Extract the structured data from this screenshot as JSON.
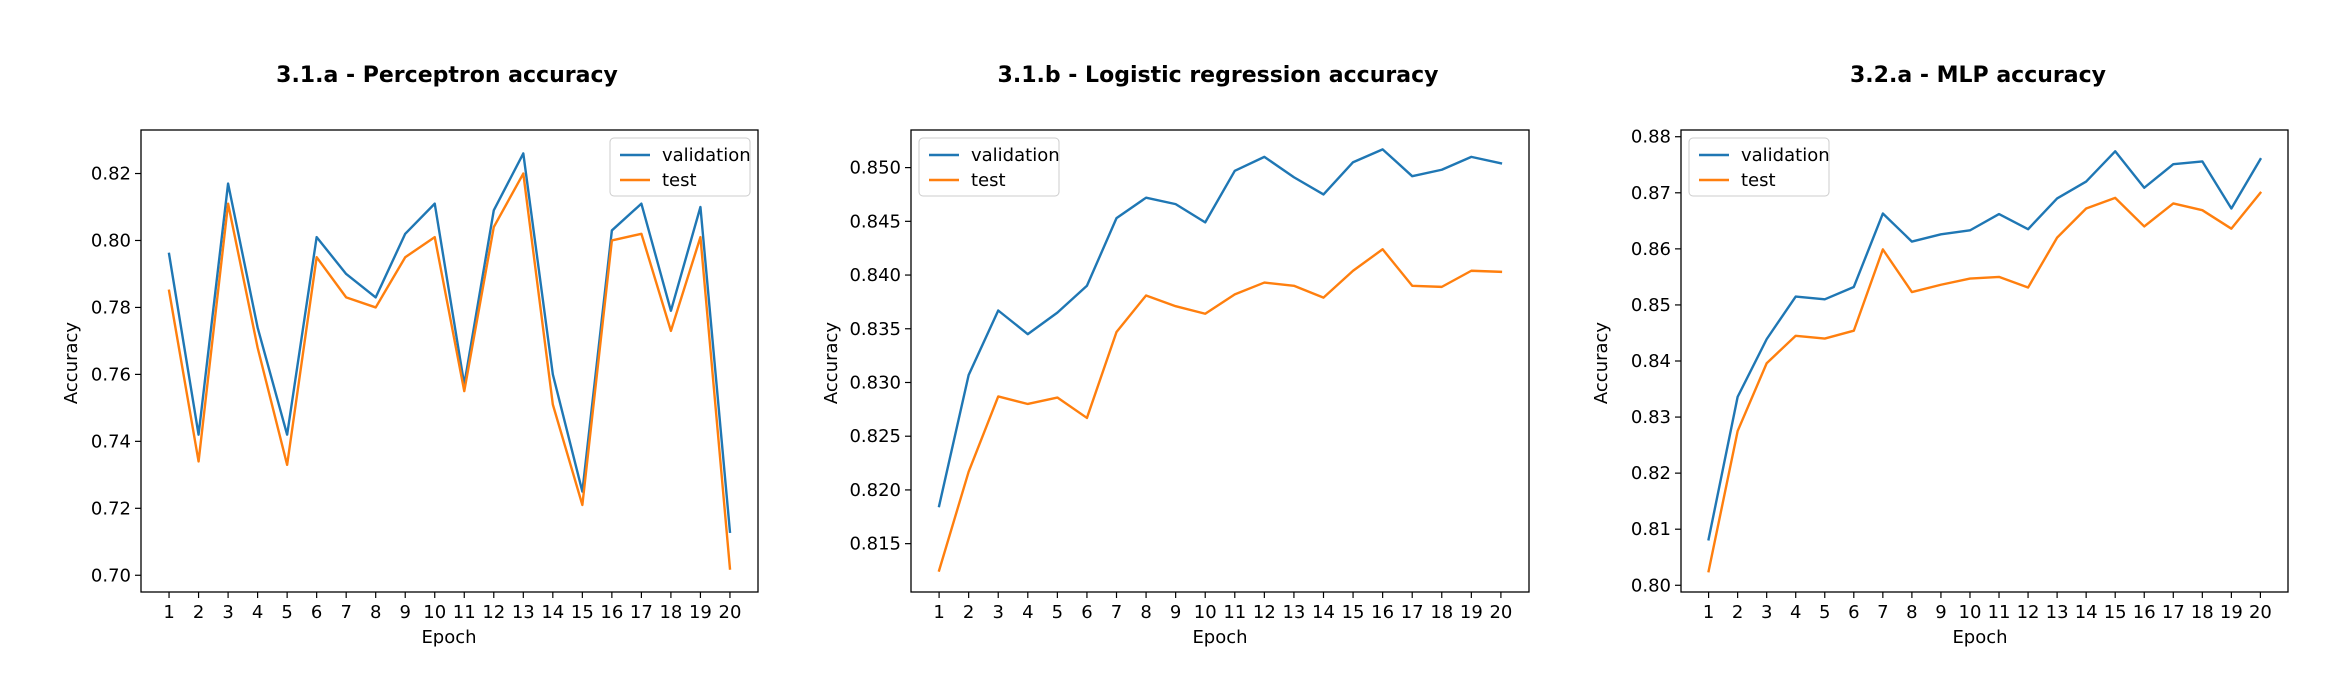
{
  "chart_data": [
    {
      "type": "line",
      "title": "3.1.a - Perceptron accuracy",
      "xlabel": "Epoch",
      "ylabel": "Accuracy",
      "x": [
        1,
        2,
        3,
        4,
        5,
        6,
        7,
        8,
        9,
        10,
        11,
        12,
        13,
        14,
        15,
        16,
        17,
        18,
        19,
        20
      ],
      "ylim": [
        0.695,
        0.833
      ],
      "yticks": [
        0.7,
        0.72,
        0.74,
        0.76,
        0.78,
        0.8,
        0.82
      ],
      "ytick_labels": [
        "0.70",
        "0.72",
        "0.74",
        "0.76",
        "0.78",
        "0.80",
        "0.82"
      ],
      "grid": false,
      "legend_position": "upper-right",
      "series": [
        {
          "name": "validation",
          "color": "#1f77b4",
          "values": [
            0.796,
            0.742,
            0.817,
            0.774,
            0.742,
            0.801,
            0.79,
            0.783,
            0.802,
            0.811,
            0.757,
            0.809,
            0.826,
            0.76,
            0.725,
            0.803,
            0.811,
            0.779,
            0.81,
            0.713
          ]
        },
        {
          "name": "test",
          "color": "#ff7f0e",
          "values": [
            0.785,
            0.734,
            0.811,
            0.768,
            0.733,
            0.795,
            0.783,
            0.78,
            0.795,
            0.801,
            0.755,
            0.804,
            0.82,
            0.751,
            0.721,
            0.8,
            0.802,
            0.773,
            0.801,
            0.702
          ]
        }
      ]
    },
    {
      "type": "line",
      "title": "3.1.b - Logistic regression accuracy",
      "xlabel": "Epoch",
      "ylabel": "Accuracy",
      "x": [
        1,
        2,
        3,
        4,
        5,
        6,
        7,
        8,
        9,
        10,
        11,
        12,
        13,
        14,
        15,
        16,
        17,
        18,
        19,
        20
      ],
      "ylim": [
        0.8105,
        0.8535
      ],
      "yticks": [
        0.815,
        0.82,
        0.825,
        0.83,
        0.835,
        0.84,
        0.845,
        0.85
      ],
      "ytick_labels": [
        "0.815",
        "0.820",
        "0.825",
        "0.830",
        "0.835",
        "0.840",
        "0.845",
        "0.850"
      ],
      "grid": false,
      "legend_position": "upper-left",
      "series": [
        {
          "name": "validation",
          "color": "#1f77b4",
          "values": [
            0.8185,
            0.8307,
            0.8367,
            0.8345,
            0.8365,
            0.839,
            0.8453,
            0.8472,
            0.8466,
            0.8449,
            0.8497,
            0.851,
            0.8491,
            0.8475,
            0.8505,
            0.8517,
            0.8492,
            0.8498,
            0.851,
            0.8504
          ]
        },
        {
          "name": "test",
          "color": "#ff7f0e",
          "values": [
            0.8125,
            0.8217,
            0.8287,
            0.828,
            0.8286,
            0.8267,
            0.8347,
            0.8381,
            0.8371,
            0.8364,
            0.8382,
            0.8393,
            0.839,
            0.8379,
            0.8404,
            0.8424,
            0.839,
            0.8389,
            0.8404,
            0.8403
          ]
        }
      ]
    },
    {
      "type": "line",
      "title": "3.2.a - MLP accuracy",
      "xlabel": "Epoch",
      "ylabel": "Accuracy",
      "x": [
        1,
        2,
        3,
        4,
        5,
        6,
        7,
        8,
        9,
        10,
        11,
        12,
        13,
        14,
        15,
        16,
        17,
        18,
        19,
        20
      ],
      "ylim": [
        0.7988,
        0.8812
      ],
      "yticks": [
        0.8,
        0.81,
        0.82,
        0.83,
        0.84,
        0.85,
        0.86,
        0.87,
        0.88
      ],
      "ytick_labels": [
        "0.80",
        "0.81",
        "0.82",
        "0.83",
        "0.84",
        "0.85",
        "0.86",
        "0.87",
        "0.88"
      ],
      "grid": false,
      "legend_position": "upper-left",
      "series": [
        {
          "name": "validation",
          "color": "#1f77b4",
          "values": [
            0.8082,
            0.8336,
            0.8439,
            0.8515,
            0.851,
            0.8532,
            0.8663,
            0.8613,
            0.8626,
            0.8633,
            0.8662,
            0.8635,
            0.869,
            0.872,
            0.8774,
            0.8709,
            0.8751,
            0.8756,
            0.8672,
            0.876
          ]
        },
        {
          "name": "test",
          "color": "#ff7f0e",
          "values": [
            0.8025,
            0.8275,
            0.8396,
            0.8445,
            0.844,
            0.8454,
            0.8599,
            0.8523,
            0.8536,
            0.8547,
            0.855,
            0.8531,
            0.862,
            0.8672,
            0.8691,
            0.864,
            0.8681,
            0.8669,
            0.8636,
            0.87
          ]
        }
      ]
    }
  ]
}
